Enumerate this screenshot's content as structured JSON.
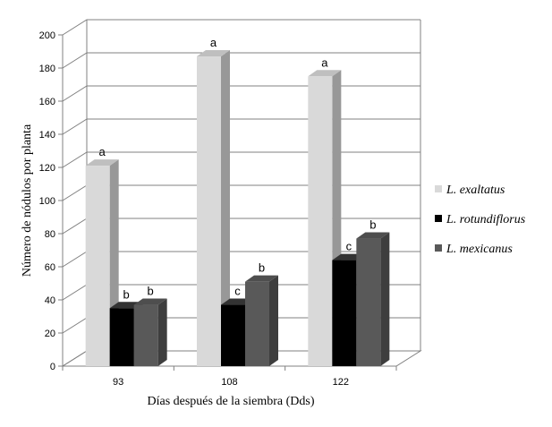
{
  "chart_data": {
    "type": "bar",
    "title": "",
    "xlabel": "Días después de la siembra (Dds)",
    "ylabel": "Número de nódulos por planta",
    "ylim": [
      0,
      200
    ],
    "yticks": [
      0,
      20,
      40,
      60,
      80,
      100,
      120,
      140,
      160,
      180,
      200
    ],
    "categories": [
      "93",
      "108",
      "122"
    ],
    "grid": true,
    "legend_position": "right",
    "style": "3d-column",
    "series": [
      {
        "name": "L. exaltatus",
        "color": "#d9d9d9",
        "values": [
          121,
          187,
          175
        ],
        "labels": [
          "a",
          "a",
          "a"
        ]
      },
      {
        "name": "L. rotundiflorus",
        "color": "#000000",
        "values": [
          35,
          37,
          64
        ],
        "labels": [
          "b",
          "c",
          "c"
        ]
      },
      {
        "name": "L. mexicanus",
        "color": "#595959",
        "values": [
          37,
          51,
          77
        ],
        "labels": [
          "b",
          "b",
          "b"
        ]
      }
    ]
  }
}
